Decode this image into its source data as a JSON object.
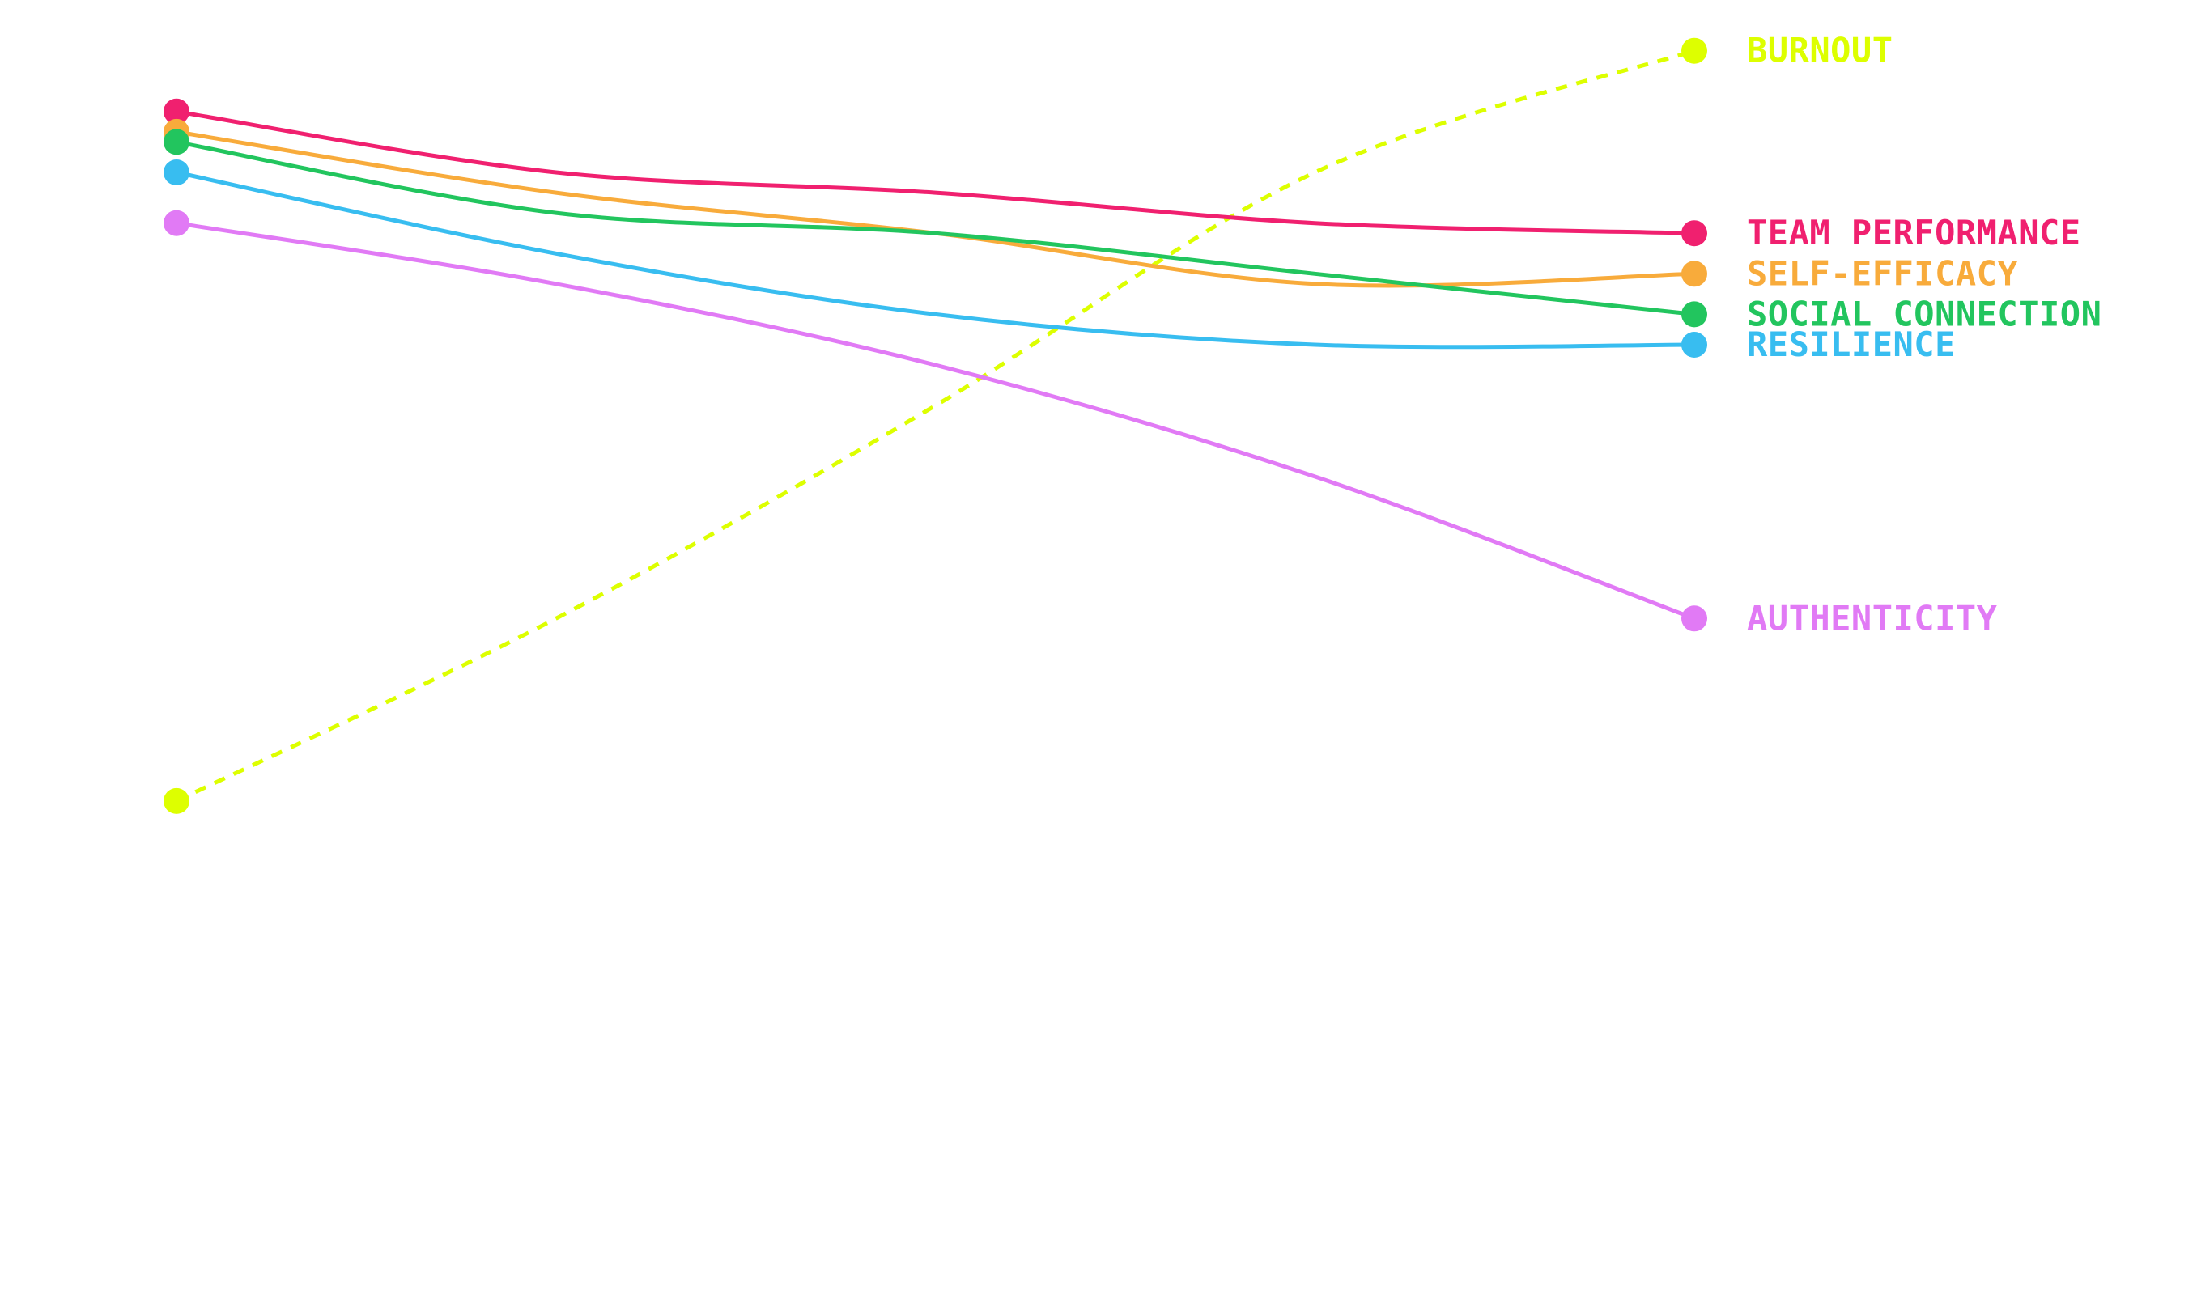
{
  "chart_data": {
    "type": "line",
    "x": [
      0,
      1,
      2,
      3,
      4
    ],
    "title": "",
    "xlabel": "",
    "ylabel": "",
    "grid": false,
    "legend": "right-edge direct labels",
    "series": [
      {
        "name": "BURNOUT",
        "color": "#DDFF00",
        "dashed": true,
        "values": [
          0.21,
          0.39,
          0.6,
          0.83,
          0.95
        ]
      },
      {
        "name": "TEAM PERFORMANCE",
        "color": "#F0206F",
        "dashed": false,
        "values": [
          0.89,
          0.83,
          0.81,
          0.78,
          0.77
        ]
      },
      {
        "name": "SELF-EFFICACY",
        "color": "#F8AB3B",
        "dashed": false,
        "values": [
          0.87,
          0.81,
          0.77,
          0.72,
          0.73
        ]
      },
      {
        "name": "SOCIAL CONNECTION",
        "color": "#22C55E",
        "dashed": false,
        "values": [
          0.86,
          0.79,
          0.77,
          0.73,
          0.69
        ]
      },
      {
        "name": "RESILIENCE",
        "color": "#38BDF0",
        "dashed": false,
        "values": [
          0.83,
          0.75,
          0.69,
          0.66,
          0.66
        ]
      },
      {
        "name": "AUTHENTICITY",
        "color": "#E17AF5",
        "dashed": false,
        "values": [
          0.78,
          0.72,
          0.64,
          0.53,
          0.39
        ]
      }
    ],
    "ylim": [
      0,
      1
    ]
  }
}
